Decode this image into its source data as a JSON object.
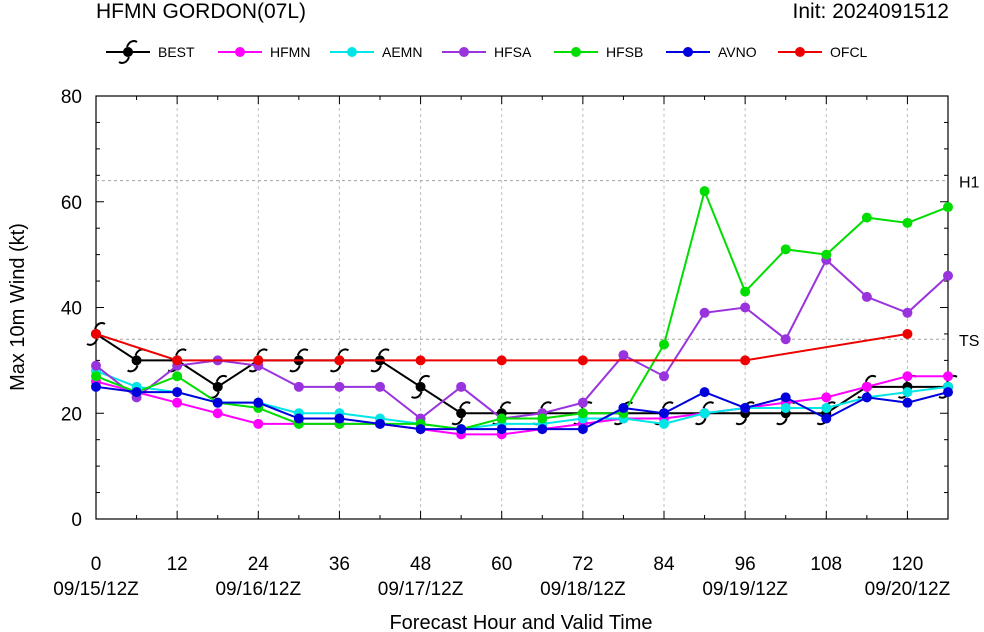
{
  "header": {
    "title": "HFMN GORDON(07L)",
    "init": "Init: 2024091512"
  },
  "chart_data": {
    "type": "line",
    "ylabel": "Max 10m Wind (kt)",
    "xlabel": "Forecast Hour and Valid Time",
    "xlim": [
      0,
      126
    ],
    "ylim": [
      0,
      80
    ],
    "xticks": [
      0,
      12,
      24,
      36,
      48,
      60,
      72,
      84,
      96,
      108,
      120
    ],
    "yticks": [
      0,
      20,
      40,
      60,
      80
    ],
    "date_labels": [
      {
        "x": 0,
        "label": "09/15/12Z"
      },
      {
        "x": 24,
        "label": "09/16/12Z"
      },
      {
        "x": 48,
        "label": "09/17/12Z"
      },
      {
        "x": 72,
        "label": "09/18/12Z"
      },
      {
        "x": 96,
        "label": "09/19/12Z"
      },
      {
        "x": 120,
        "label": "09/20/12Z"
      }
    ],
    "reference_lines": [
      {
        "label": "H1",
        "value": 64
      },
      {
        "label": "TS",
        "value": 34
      }
    ],
    "legend_position": "top",
    "series": [
      {
        "name": "BEST",
        "color": "#000000",
        "marker": "hurricane",
        "x": [
          0,
          6,
          12,
          18,
          24,
          30,
          36,
          42,
          48,
          54,
          60,
          66,
          72,
          78,
          84,
          90,
          96,
          102,
          108,
          114,
          120,
          126
        ],
        "y": [
          35,
          30,
          30,
          25,
          30,
          30,
          30,
          30,
          25,
          20,
          20,
          20,
          20,
          20,
          20,
          20,
          20,
          20,
          20,
          25,
          25,
          25
        ]
      },
      {
        "name": "HFMN",
        "color": "#ff00ff",
        "marker": "dot",
        "x": [
          0,
          6,
          12,
          18,
          24,
          30,
          36,
          42,
          48,
          54,
          60,
          66,
          72,
          78,
          84,
          90,
          96,
          102,
          108,
          114,
          120,
          126
        ],
        "y": [
          26,
          24,
          22,
          20,
          18,
          18,
          18,
          18,
          17,
          16,
          16,
          17,
          18,
          19,
          19,
          20,
          21,
          22,
          23,
          25,
          27,
          27
        ]
      },
      {
        "name": "AEMN",
        "color": "#00e5e5",
        "marker": "dot",
        "x": [
          0,
          6,
          12,
          18,
          24,
          30,
          36,
          42,
          48,
          54,
          60,
          66,
          72,
          78,
          84,
          90,
          96,
          102,
          108,
          114,
          120,
          126
        ],
        "y": [
          28,
          25,
          24,
          22,
          22,
          20,
          20,
          19,
          18,
          17,
          18,
          18,
          19,
          19,
          18,
          20,
          21,
          21,
          21,
          23,
          24,
          25
        ]
      },
      {
        "name": "HFSA",
        "color": "#9933dd",
        "marker": "dot",
        "x": [
          0,
          6,
          12,
          18,
          24,
          30,
          36,
          42,
          48,
          54,
          60,
          66,
          72,
          78,
          84,
          90,
          96,
          102,
          108,
          114,
          120,
          126
        ],
        "y": [
          29,
          23,
          29,
          30,
          29,
          25,
          25,
          25,
          19,
          25,
          19,
          20,
          22,
          31,
          27,
          39,
          40,
          34,
          49,
          42,
          39,
          46
        ]
      },
      {
        "name": "HFSB",
        "color": "#00dd00",
        "marker": "dot",
        "x": [
          0,
          6,
          12,
          18,
          24,
          30,
          36,
          42,
          48,
          54,
          60,
          66,
          72,
          78,
          84,
          90,
          96,
          102,
          108,
          114,
          120,
          126
        ],
        "y": [
          27,
          24,
          27,
          22,
          21,
          18,
          18,
          18,
          18,
          17,
          19,
          19,
          20,
          20,
          33,
          62,
          43,
          51,
          50,
          57,
          56,
          59
        ]
      },
      {
        "name": "AVNO",
        "color": "#0000dd",
        "marker": "dot",
        "x": [
          0,
          6,
          12,
          18,
          24,
          30,
          36,
          42,
          48,
          54,
          60,
          66,
          72,
          78,
          84,
          90,
          96,
          102,
          108,
          114,
          120,
          126
        ],
        "y": [
          25,
          24,
          24,
          22,
          22,
          19,
          19,
          18,
          17,
          17,
          17,
          17,
          17,
          21,
          20,
          24,
          21,
          23,
          19,
          23,
          22,
          24
        ]
      },
      {
        "name": "OFCL",
        "color": "#ee0000",
        "marker": "dot",
        "x": [
          0,
          12,
          24,
          36,
          48,
          60,
          72,
          96,
          120
        ],
        "y": [
          35,
          30,
          30,
          30,
          30,
          30,
          30,
          30,
          35
        ]
      }
    ]
  }
}
